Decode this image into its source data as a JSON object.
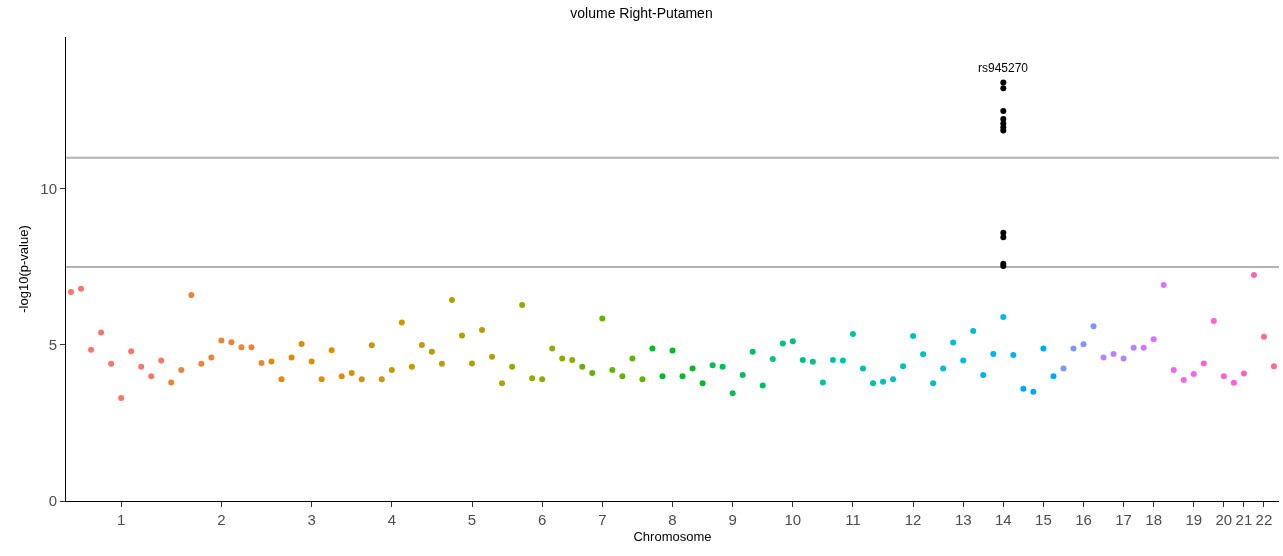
{
  "chart_data": {
    "type": "scatter",
    "title": "volume Right-Putamen",
    "xlabel": "Chromosome",
    "ylabel": "-log10(p-value)",
    "categories": [
      null,
      null,
      null,
      null,
      null,
      "1",
      null,
      null,
      null,
      null,
      null,
      null,
      null,
      null,
      null,
      "2",
      null,
      null,
      null,
      null,
      null,
      null,
      null,
      null,
      "3",
      null,
      null,
      null,
      null,
      null,
      null,
      null,
      "4",
      null,
      null,
      null,
      null,
      null,
      null,
      null,
      "5",
      null,
      null,
      null,
      null,
      null,
      null,
      "6",
      null,
      null,
      null,
      null,
      null,
      "7",
      null,
      null,
      null,
      null,
      null,
      null,
      "8",
      null,
      null,
      null,
      null,
      null,
      "9",
      null,
      null,
      null,
      null,
      null,
      "10",
      null,
      null,
      null,
      null,
      null,
      "11",
      null,
      null,
      null,
      null,
      null,
      "12",
      null,
      null,
      null,
      null,
      "13",
      null,
      null,
      null,
      "14",
      null,
      null,
      null,
      "15",
      null,
      null,
      null,
      "16",
      null,
      null,
      null,
      "17",
      null,
      null,
      "18",
      null,
      null,
      null,
      "19",
      null,
      null,
      "20",
      null,
      "21",
      null,
      "22",
      null
    ],
    "ylim": [
      0,
      14.87
    ],
    "yticks": [
      0,
      5,
      10
    ],
    "grid": false,
    "marker": "circle",
    "ref_lines": [
      {
        "axis": "y",
        "value": 7.5,
        "color": "#b3b3b3"
      },
      {
        "axis": "y",
        "value": 11,
        "color": "#b3b3b3"
      }
    ],
    "annotations": [
      {
        "text": "rs945270",
        "x": "14",
        "y": 13.41
      }
    ],
    "series": [
      {
        "values": [
          6.7,
          6.8,
          4.85,
          5.4,
          4.4,
          3.3,
          4.8,
          4.3,
          4.0,
          4.5,
          3.8,
          4.2,
          6.6,
          4.4,
          4.6,
          5.14,
          5.09,
          4.93,
          4.93,
          4.42,
          4.47,
          3.9,
          4.6,
          5.03,
          4.47,
          3.9,
          4.83,
          4.0,
          4.1,
          3.9,
          4.99,
          3.9,
          4.2,
          5.72,
          4.3,
          5.0,
          4.78,
          4.4,
          6.44,
          5.3,
          4.41,
          5.48,
          4.62,
          3.77,
          4.3,
          6.28,
          3.93,
          3.9,
          4.89,
          4.57,
          4.52,
          4.3,
          4.1,
          5.85,
          4.2,
          4.0,
          4.57,
          3.9,
          4.89,
          4.0,
          4.82,
          4.0,
          4.25,
          3.77,
          4.35,
          4.3,
          3.45,
          4.04,
          4.78,
          3.7,
          4.55,
          5.05,
          5.12,
          4.52,
          4.46,
          3.8,
          4.52,
          4.5,
          5.35,
          4.25,
          3.77,
          3.82,
          3.9,
          4.32,
          5.29,
          4.7,
          3.77,
          4.25,
          5.08,
          4.5,
          5.45,
          4.04,
          4.71,
          5.9,
          4.68,
          3.6,
          3.5,
          4.89,
          4.0,
          4.25,
          4.89,
          5.02,
          5.6,
          4.6,
          4.71,
          4.57,
          4.91,
          4.91,
          5.18,
          6.92,
          4.2,
          3.88,
          4.07,
          4.41,
          5.77,
          4.0,
          3.79,
          4.09,
          7.24,
          5.26,
          4.32
        ],
        "colors": [
          "#f8766d",
          "#f8766d",
          "#f8766d",
          "#f8766d",
          "#f8766d",
          "#f8766d",
          "#f8766d",
          "#f8766d",
          "#f8766d",
          "#f8766d",
          "#eb833a",
          "#eb833a",
          "#eb833a",
          "#eb833a",
          "#eb833a",
          "#eb833a",
          "#eb833a",
          "#eb833a",
          "#eb833a",
          "#eb833a",
          "#dc8d00",
          "#dc8d00",
          "#dc8d00",
          "#dc8d00",
          "#dc8d00",
          "#dc8d00",
          "#dc8d00",
          "#dc8d00",
          "#c89900",
          "#c89900",
          "#c89900",
          "#c89900",
          "#c89900",
          "#c89900",
          "#c89900",
          "#c89900",
          "#b0a000",
          "#b0a000",
          "#b0a000",
          "#b0a000",
          "#b0a000",
          "#b0a000",
          "#b0a000",
          "#b0a000",
          "#92aa00",
          "#92aa00",
          "#92aa00",
          "#92aa00",
          "#92aa00",
          "#92aa00",
          "#92aa00",
          "#62b300",
          "#62b300",
          "#62b300",
          "#62b300",
          "#62b300",
          "#62b300",
          "#62b300",
          "#00ba26",
          "#00ba26",
          "#00ba26",
          "#00ba26",
          "#00ba26",
          "#00ba26",
          "#00bd5c",
          "#00bd5c",
          "#00bd5c",
          "#00bd5c",
          "#00bd5c",
          "#00bd5c",
          "#00c083",
          "#00c083",
          "#00c083",
          "#00c083",
          "#00c083",
          "#00c1a2",
          "#00c1a2",
          "#00c1a2",
          "#00c1a2",
          "#00c1a2",
          "#00c1a2",
          "#00c0bd",
          "#00c0bd",
          "#00c0bd",
          "#00c0bd",
          "#00c0bd",
          "#00c0bd",
          "#00bbd6",
          "#00bbd6",
          "#00bbd6",
          "#00bbd6",
          "#00b4ef",
          "#00b4ef",
          "#00b4ef",
          "#00b4ef",
          "#00a5ff",
          "#00a5ff",
          "#00a5ff",
          "#00a5ff",
          "#7f96ff",
          "#7f96ff",
          "#7f96ff",
          "#7f96ff",
          "#b385ff",
          "#b385ff",
          "#b385ff",
          "#b385ff",
          "#d874fd",
          "#d874fd",
          "#d874fd",
          "#ef67eb",
          "#ef67eb",
          "#ef67eb",
          "#fd61d3",
          "#fd61d3",
          "#fd61d3",
          "#fd61d3",
          "#ff64b5",
          "#ff64b5",
          "#ff6c91",
          "#ff6c91"
        ]
      },
      {
        "color": "#000000",
        "x": [
          "14",
          "14",
          "14",
          "14",
          "14",
          "14",
          "14",
          "14",
          "14",
          "14",
          "14"
        ],
        "values": [
          13.41,
          13.23,
          12.5,
          12.24,
          12.1,
          11.98,
          11.87,
          8.6,
          8.45,
          7.6,
          7.53
        ]
      }
    ]
  }
}
